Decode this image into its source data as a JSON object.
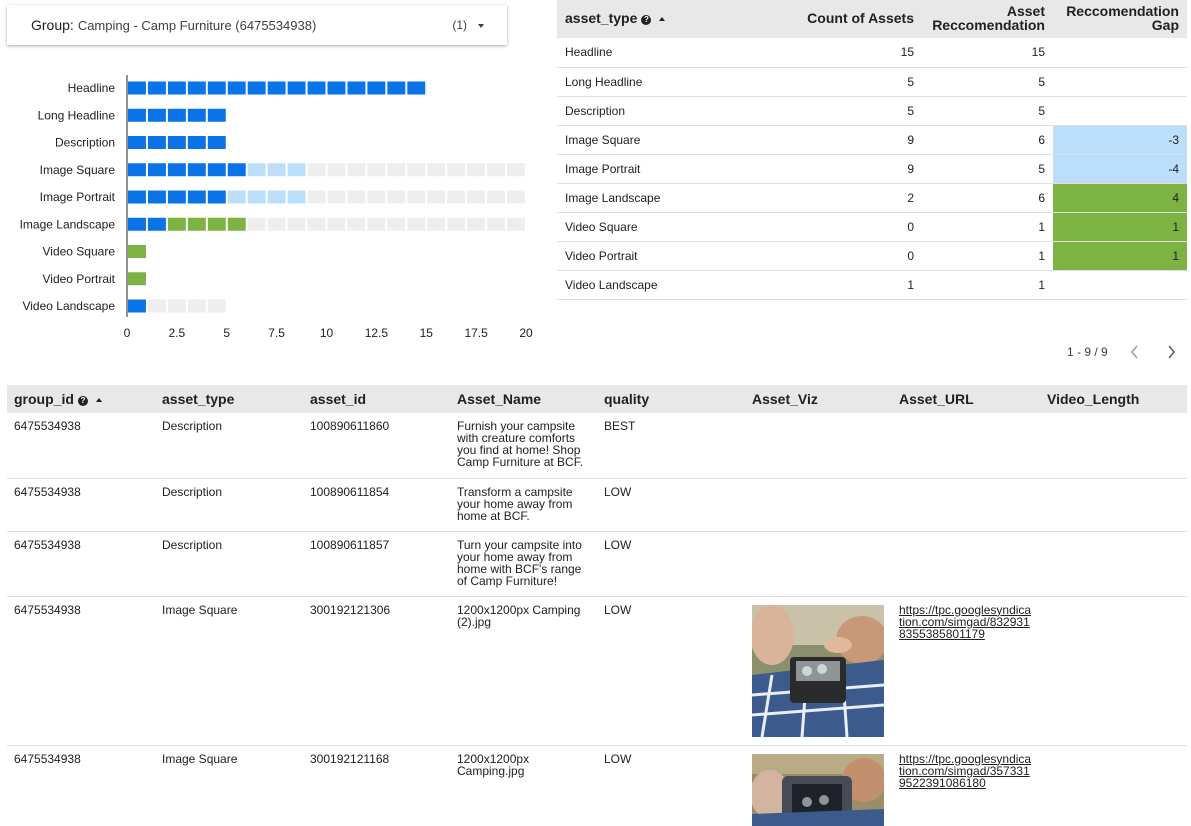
{
  "group_filter": {
    "label": "Group",
    "colon": ":",
    "value": "Camping - Camp Furniture (6475534938)",
    "count": "(1)"
  },
  "chart_data": {
    "type": "bar",
    "subtype": "bullet",
    "categories": [
      "Headline",
      "Long Headline",
      "Description",
      "Image Square",
      "Image Portrait",
      "Image Landscape",
      "Video Square",
      "Video Portrait",
      "Video Landscape"
    ],
    "series": [
      {
        "name": "",
        "values": [
          15,
          5,
          5,
          9,
          9,
          2,
          0,
          0,
          1
        ]
      },
      {
        "name": "",
        "values": [
          15,
          5,
          5,
          6,
          5,
          6,
          1,
          1,
          1
        ]
      }
    ],
    "gap_values": [
      0,
      0,
      0,
      -3,
      -4,
      4,
      1,
      1,
      0
    ],
    "background_max": [
      0,
      0,
      0,
      20,
      20,
      20,
      0,
      0,
      5
    ],
    "xlim": [
      0,
      20
    ],
    "xticks": [
      "0",
      "2.5",
      "5",
      "7.5",
      "10",
      "12.5",
      "15",
      "17.5",
      "20"
    ],
    "title": "",
    "xlabel": "",
    "ylabel": "",
    "colors": {
      "count": "#0a73e8",
      "recommendation": "#bbdefb",
      "gap": "#7cb342",
      "background": "#eeeeee"
    }
  },
  "summary_table": {
    "headers": {
      "asset_type": "asset_type",
      "count": "Count of Assets",
      "recommendation_line1": "Asset",
      "recommendation_line2": "Reccomendation",
      "gap_line1": "Reccomendation",
      "gap_line2": "Gap"
    },
    "rows": [
      {
        "asset_type": "Headline",
        "count": "15",
        "recommendation": "15",
        "gap": ""
      },
      {
        "asset_type": "Long Headline",
        "count": "5",
        "recommendation": "5",
        "gap": ""
      },
      {
        "asset_type": "Description",
        "count": "5",
        "recommendation": "5",
        "gap": ""
      },
      {
        "asset_type": "Image Square",
        "count": "9",
        "recommendation": "6",
        "gap": "-3"
      },
      {
        "asset_type": "Image Portrait",
        "count": "9",
        "recommendation": "5",
        "gap": "-4"
      },
      {
        "asset_type": "Image Landscape",
        "count": "2",
        "recommendation": "6",
        "gap": "4"
      },
      {
        "asset_type": "Video Square",
        "count": "0",
        "recommendation": "1",
        "gap": "1"
      },
      {
        "asset_type": "Video Portrait",
        "count": "0",
        "recommendation": "1",
        "gap": "1"
      },
      {
        "asset_type": "Video Landscape",
        "count": "1",
        "recommendation": "1",
        "gap": ""
      }
    ],
    "pagination": "1 - 9 / 9",
    "colors": {
      "gap_negative": "#bbdefb",
      "gap_positive": "#7cb342"
    }
  },
  "asset_table": {
    "headers": {
      "group_id": "group_id",
      "asset_type": "asset_type",
      "asset_id": "asset_id",
      "asset_name": "Asset_Name",
      "quality": "quality",
      "asset_viz": "Asset_Viz",
      "asset_url": "Asset_URL",
      "video_length": "Video_Length"
    },
    "rows": [
      {
        "group_id": "6475534938",
        "asset_type": "Description",
        "asset_id": "100890611860",
        "asset_name": "Furnish your campsite with creature comforts you find at home! Shop Camp Furniture at BCF.",
        "quality": "BEST",
        "asset_url": "",
        "video_length": ""
      },
      {
        "group_id": "6475534938",
        "asset_type": "Description",
        "asset_id": "100890611854",
        "asset_name": "Transform a campsite your home away from home at BCF.",
        "quality": "LOW",
        "asset_url": "",
        "video_length": ""
      },
      {
        "group_id": "6475534938",
        "asset_type": "Description",
        "asset_id": "100890611857",
        "asset_name": "Turn your campsite into your home away from home with BCF's range of Camp Furniture!",
        "quality": "LOW",
        "asset_url": "",
        "video_length": ""
      },
      {
        "group_id": "6475534938",
        "asset_type": "Image Square",
        "asset_id": "300192121306",
        "asset_name": "1200x1200px Camping (2).jpg",
        "quality": "LOW",
        "asset_url": "https://tpc.googlesyndication.com/simgad/8329318355385801179",
        "video_length": ""
      },
      {
        "group_id": "6475534938",
        "asset_type": "Image Square",
        "asset_id": "300192121168",
        "asset_name": "1200x1200px Camping.jpg",
        "quality": "LOW",
        "asset_url": "https://tpc.googlesyndication.com/simgad/3573319522391086180",
        "video_length": ""
      }
    ]
  }
}
